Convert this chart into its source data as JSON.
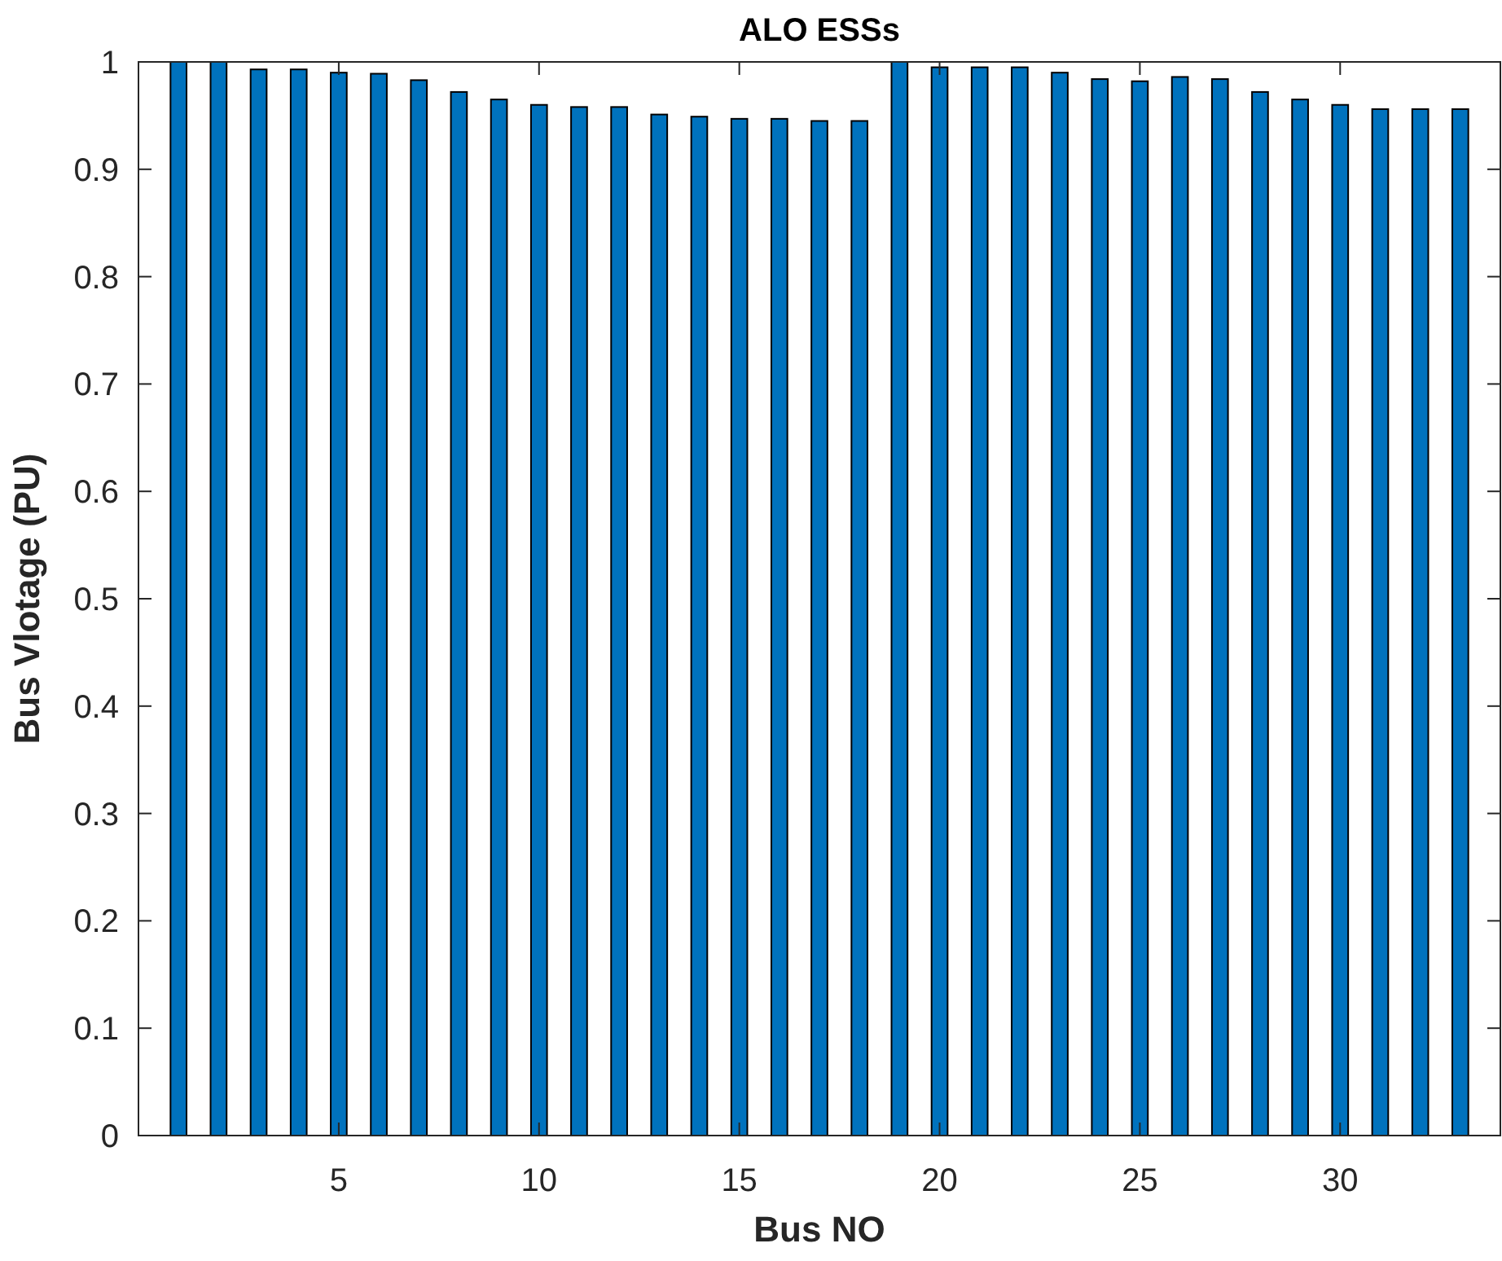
{
  "chart_data": {
    "type": "bar",
    "title": "ALO ESSs",
    "xlabel": "Bus NO",
    "ylabel": "Bus Vlotage (PU)",
    "x": [
      1,
      2,
      3,
      4,
      5,
      6,
      7,
      8,
      9,
      10,
      11,
      12,
      13,
      14,
      15,
      16,
      17,
      18,
      19,
      20,
      21,
      22,
      23,
      24,
      25,
      26,
      27,
      28,
      29,
      30,
      31,
      32,
      33
    ],
    "values": [
      1.0,
      1.0,
      0.993,
      0.993,
      0.99,
      0.989,
      0.983,
      0.972,
      0.965,
      0.96,
      0.958,
      0.958,
      0.951,
      0.949,
      0.947,
      0.947,
      0.945,
      0.945,
      1.0,
      0.995,
      0.995,
      0.995,
      0.99,
      0.984,
      0.982,
      0.986,
      0.984,
      0.972,
      0.965,
      0.96,
      0.956,
      0.956,
      0.956
    ],
    "color": "#0072bd",
    "xlim": [
      0,
      34
    ],
    "xticks": [
      5,
      10,
      15,
      20,
      25,
      30
    ],
    "ylim": [
      0,
      1
    ],
    "yticks": [
      0,
      0.1,
      0.2,
      0.3,
      0.4,
      0.5,
      0.6,
      0.7,
      0.8,
      0.9,
      1
    ],
    "grid": false
  }
}
